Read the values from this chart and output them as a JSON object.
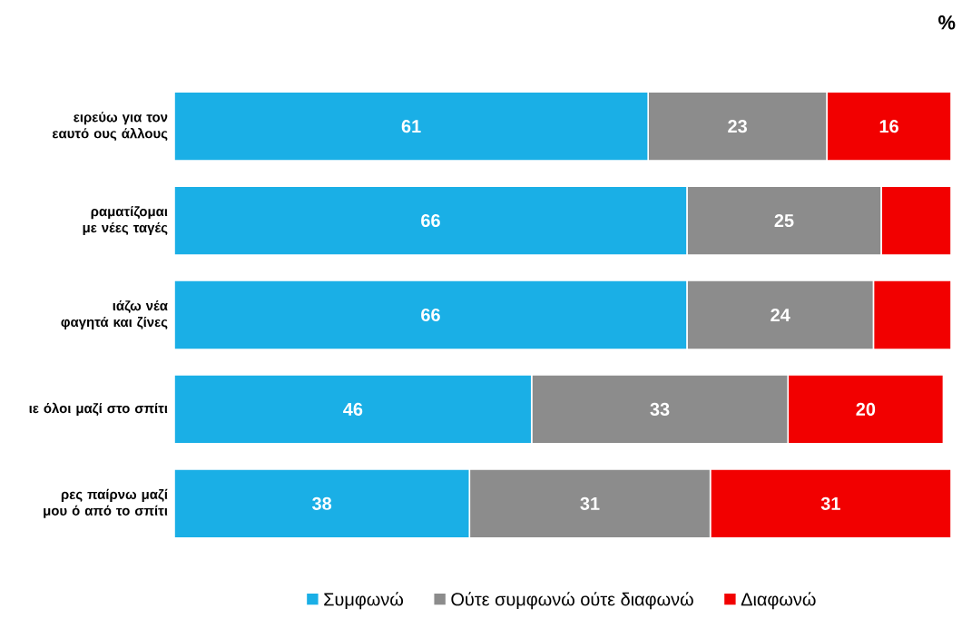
{
  "chart_data": {
    "type": "bar",
    "orientation": "horizontal",
    "stacked": true,
    "tick_labels": "y",
    "legend": "bottom",
    "categories": [
      "ειρεύω για τον εαυτό ους άλλους",
      "ραματίζομαι με νέες ταγές",
      "ιάζω νέα φαγητά και ζίνες",
      "ιε όλοι μαζί στο σπίτι",
      "ρες παίρνω μαζί μου ό από το σπίτι"
    ],
    "series": [
      {
        "name": "Συμφωνώ",
        "color": "#1aafe6",
        "values": [
          61,
          66,
          66,
          46,
          38
        ],
        "value_labels": [
          "61",
          "66",
          "66",
          "46",
          "38"
        ]
      },
      {
        "name": "Ούτε συμφωνώ ούτε διαφωνώ",
        "color": "#8c8c8c",
        "values": [
          23,
          25,
          24,
          33,
          31
        ],
        "value_labels": [
          "23",
          "25",
          "24",
          "33",
          "31"
        ]
      },
      {
        "name": "Διαφωνώ",
        "color": "#f20000",
        "values": [
          16,
          9,
          10,
          20,
          31
        ],
        "value_labels": [
          "16",
          null,
          null,
          "20",
          "31"
        ]
      }
    ],
    "annotations": [
      "%"
    ]
  }
}
